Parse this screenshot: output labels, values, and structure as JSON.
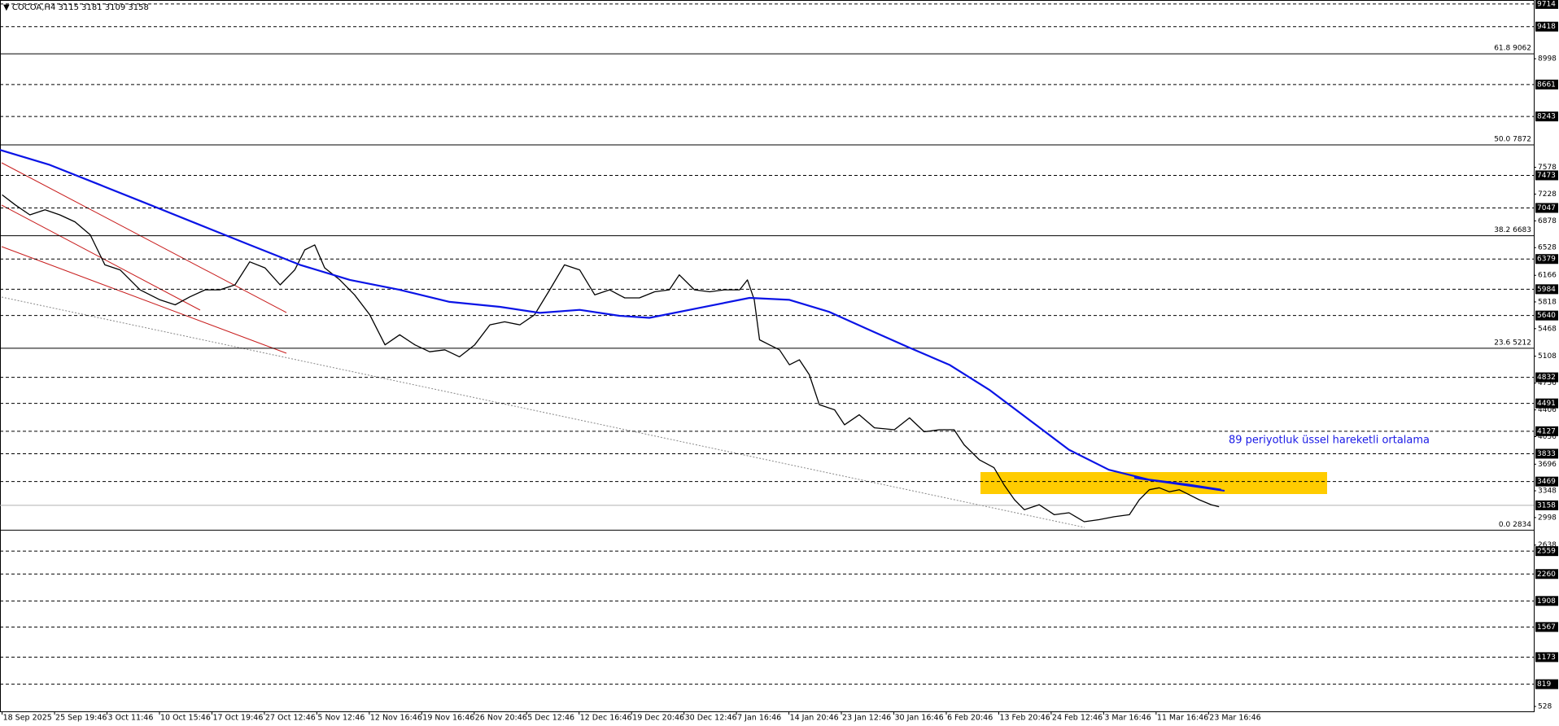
{
  "chart_data": {
    "type": "line",
    "title": "▼ COCOA,H4  3115 3181 3109 3158",
    "annotation": "89 periyotluk üssel hareketli ortalama",
    "xlim": [
      -0.04,
      29.2
    ],
    "ylim": [
      464,
      9766
    ],
    "xticks": [
      {
        "value": 0,
        "label": "18 Sep 2025"
      },
      {
        "value": 1,
        "label": "25 Sep 19:46"
      },
      {
        "value": 2,
        "label": "3 Oct 11:46"
      },
      {
        "value": 3,
        "label": "10 Oct 15:46"
      },
      {
        "value": 4,
        "label": "17 Oct 19:46"
      },
      {
        "value": 5,
        "label": "27 Oct 12:46"
      },
      {
        "value": 6,
        "label": "5 Nov 12:46"
      },
      {
        "value": 7,
        "label": "12 Nov 16:46"
      },
      {
        "value": 8,
        "label": "19 Nov 16:46"
      },
      {
        "value": 9,
        "label": "26 Nov 20:46"
      },
      {
        "value": 10,
        "label": "5 Dec 12:46"
      },
      {
        "value": 11,
        "label": "12 Dec 16:46"
      },
      {
        "value": 12,
        "label": "19 Dec 20:46"
      },
      {
        "value": 13,
        "label": "30 Dec 12:46"
      },
      {
        "value": 14,
        "label": "7 Jan 16:46"
      },
      {
        "value": 15,
        "label": "14 Jan 20:46"
      },
      {
        "value": 16,
        "label": "23 Jan 12:46"
      },
      {
        "value": 17,
        "label": "30 Jan 16:46"
      },
      {
        "value": 18,
        "label": "6 Feb 20:46"
      },
      {
        "value": 19,
        "label": "13 Feb 20:46"
      },
      {
        "value": 20,
        "label": "24 Feb 12:46"
      },
      {
        "value": 21,
        "label": "3 Mar 16:46"
      },
      {
        "value": 22,
        "label": "11 Mar 16:46"
      },
      {
        "value": 23,
        "label": "23 Mar 16:46"
      }
    ],
    "yticks": [
      8998,
      7578,
      7228,
      6878,
      6528,
      6166,
      5818,
      5468,
      5108,
      4756,
      4406,
      4056,
      3696,
      3348,
      2998,
      2638,
      528
    ],
    "levels": [
      9714,
      9418,
      8661,
      8243,
      7473,
      7047,
      6379,
      5984,
      5640,
      4832,
      4491,
      4127,
      3833,
      3469,
      2559,
      2260,
      1908,
      1567,
      1173,
      819
    ],
    "current_price": 3158,
    "fib_levels": [
      {
        "value": 9062,
        "label": "61.8 9062"
      },
      {
        "value": 7872,
        "label": "50.0 7872"
      },
      {
        "value": 6683,
        "label": "38.2 6683"
      },
      {
        "value": 5212,
        "label": "23.6 5212"
      },
      {
        "value": 2834,
        "label": "0.0 2834"
      }
    ],
    "series": [
      {
        "color": "#000000",
        "width": 1.3,
        "x": [
          0,
          0.25,
          0.53,
          0.82,
          1.1,
          1.39,
          1.68,
          1.96,
          2.25,
          2.63,
          3.01,
          3.3,
          3.58,
          3.87,
          4.15,
          4.44,
          4.72,
          5.01,
          5.3,
          5.58,
          5.77,
          5.96,
          6.15,
          6.44,
          6.72,
          7.01,
          7.3,
          7.58,
          7.87,
          8.15,
          8.44,
          8.72,
          9.01,
          9.3,
          9.58,
          9.87,
          10.15,
          10.44,
          10.72,
          11.01,
          11.3,
          11.58,
          11.87,
          12.15,
          12.44,
          12.72,
          12.91,
          13.2,
          13.49,
          13.77,
          14.06,
          14.21,
          14.34,
          14.44,
          14.63,
          14.82,
          15.01,
          15.2,
          15.39,
          15.58,
          15.87,
          16.06,
          16.34,
          16.63,
          17.01,
          17.3,
          17.58,
          17.87,
          18.15,
          18.34,
          18.63,
          18.91,
          19.1,
          19.3,
          19.49,
          19.77,
          20.06,
          20.34,
          20.63,
          20.91,
          21.2,
          21.49,
          21.68,
          21.87,
          22.06,
          22.25,
          22.44,
          22.63,
          22.82,
          23.05,
          23.2
        ],
        "values": [
          7218,
          7087,
          6956,
          7022,
          6956,
          6865,
          6695,
          6303,
          6237,
          5976,
          5845,
          5780,
          5884,
          5976,
          5976,
          6041,
          6342,
          6263,
          6041,
          6237,
          6499,
          6564,
          6263,
          6106,
          5910,
          5649,
          5257,
          5388,
          5257,
          5166,
          5192,
          5100,
          5257,
          5518,
          5558,
          5518,
          5649,
          5976,
          6303,
          6237,
          5910,
          5976,
          5871,
          5871,
          5950,
          5976,
          6172,
          5976,
          5950,
          5976,
          5976,
          6106,
          5845,
          5323,
          5257,
          5192,
          4996,
          5061,
          4865,
          4473,
          4407,
          4211,
          4342,
          4172,
          4146,
          4302,
          4120,
          4146,
          4146,
          3950,
          3754,
          3650,
          3427,
          3231,
          3100,
          3166,
          3035,
          3061,
          2944,
          2970,
          3009,
          3035,
          3231,
          3362,
          3388,
          3336,
          3362,
          3297,
          3231,
          3166,
          3140
        ]
      },
      {
        "color": "#0a14e6",
        "width": 2.2,
        "x": [
          -0.04,
          0.91,
          1.87,
          2.82,
          3.77,
          4.72,
          5.68,
          6.63,
          7.58,
          8.53,
          9.49,
          10.25,
          11.01,
          11.77,
          12.34,
          13.3,
          14.25,
          15.01,
          15.77,
          16.53,
          17.3,
          18.06,
          18.82,
          19.58,
          20.34,
          21.1,
          21.87,
          22.63,
          23.24
        ],
        "values": [
          7806,
          7610,
          7348,
          7087,
          6825,
          6564,
          6303,
          6106,
          5976,
          5819,
          5754,
          5675,
          5714,
          5636,
          5610,
          5741,
          5871,
          5845,
          5688,
          5453,
          5218,
          4996,
          4669,
          4277,
          3885,
          3623,
          3493,
          3427,
          3362
        ]
      }
    ]
  }
}
